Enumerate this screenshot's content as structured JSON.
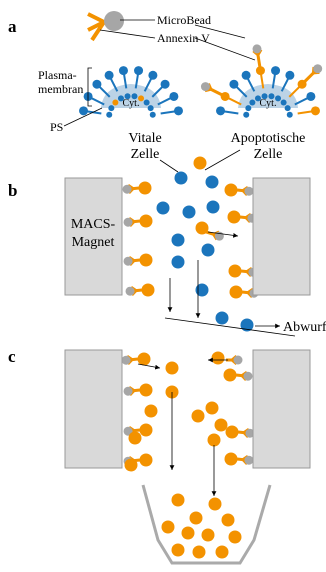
{
  "panel_a": {
    "label": "a",
    "microbead": "MicroBead",
    "annexin": "Annexin V",
    "membrane": [
      "Plasma-",
      "membran"
    ],
    "ps": "PS",
    "cytoplasm": [
      "Cyt.",
      "Cyt."
    ],
    "live_cell": [
      "Vitale",
      "Zelle"
    ],
    "apoptotic_cell": [
      "Apoptotische",
      "Zelle"
    ]
  },
  "panel_b": {
    "label": "b",
    "magnet": [
      "MACS-",
      "Magnet"
    ],
    "waste": "Abwurf"
  },
  "panel_c": {
    "label": "c"
  }
}
